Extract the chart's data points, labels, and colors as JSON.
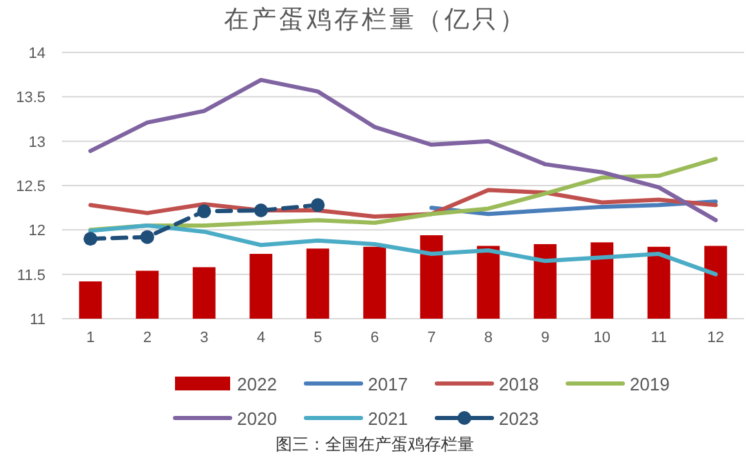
{
  "chart_data": {
    "type": "line",
    "title": "在产蛋鸡存栏量（亿只）",
    "categories": [
      "1",
      "2",
      "3",
      "4",
      "5",
      "6",
      "7",
      "8",
      "9",
      "10",
      "11",
      "12"
    ],
    "ylim": [
      11,
      14
    ],
    "yticks": [
      11,
      11.5,
      12,
      12.5,
      13,
      13.5,
      14
    ],
    "grid": "y",
    "legend": "bottom",
    "series": [
      {
        "name": "2022",
        "type": "bar",
        "color": "#c00000",
        "values": [
          11.42,
          11.54,
          11.58,
          11.73,
          11.79,
          11.81,
          11.94,
          11.82,
          11.84,
          11.86,
          11.81,
          11.82
        ]
      },
      {
        "name": "2017",
        "color": "#4a7ebb",
        "values": [
          null,
          null,
          null,
          null,
          null,
          null,
          12.25,
          12.18,
          12.22,
          12.26,
          12.28,
          12.32
        ]
      },
      {
        "name": "2018",
        "color": "#c0504d",
        "values": [
          12.28,
          12.19,
          12.29,
          12.22,
          12.22,
          12.15,
          12.18,
          12.45,
          12.42,
          12.31,
          12.34,
          12.28
        ]
      },
      {
        "name": "2019",
        "color": "#9bbb59",
        "values": [
          12.0,
          12.05,
          12.05,
          12.08,
          12.11,
          12.08,
          12.18,
          12.24,
          12.41,
          12.59,
          12.61,
          12.8
        ]
      },
      {
        "name": "2020",
        "color": "#8064a2",
        "values": [
          12.89,
          13.21,
          13.34,
          13.69,
          13.56,
          13.16,
          12.96,
          13.0,
          12.74,
          12.65,
          12.48,
          12.11
        ]
      },
      {
        "name": "2021",
        "color": "#4bacc6",
        "values": [
          11.99,
          12.05,
          11.98,
          11.83,
          11.88,
          11.84,
          11.73,
          11.77,
          11.65,
          11.69,
          11.73,
          11.5
        ]
      },
      {
        "name": "2023",
        "color": "#1f4e79",
        "marker": "circle",
        "line_style": "dashed",
        "values": [
          11.9,
          11.92,
          12.21,
          12.22,
          12.28,
          null,
          null,
          null,
          null,
          null,
          null,
          null
        ]
      }
    ],
    "annotations": [
      "图三：全国在产蛋鸡存栏量"
    ]
  }
}
